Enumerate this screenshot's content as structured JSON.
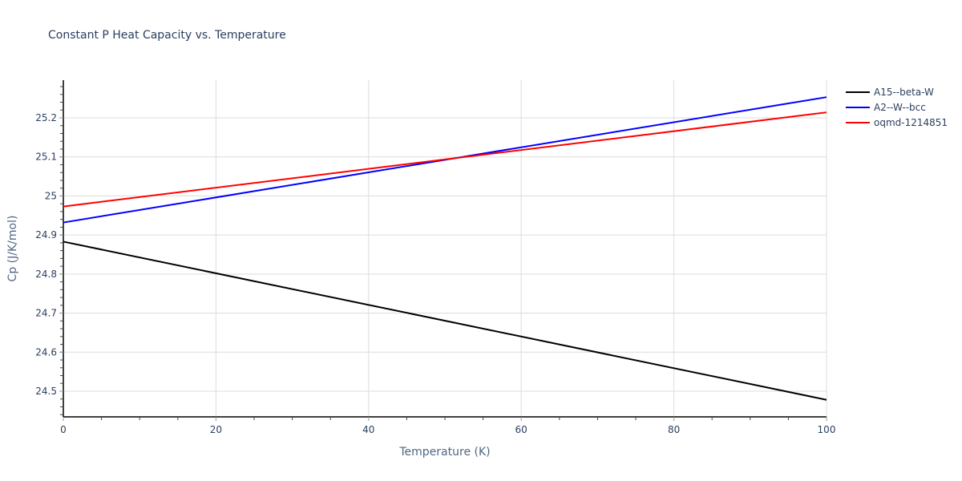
{
  "chart_data": {
    "type": "line",
    "title": "Constant P Heat Capacity vs. Temperature",
    "xlabel": "Temperature (K)",
    "ylabel": "Cp (J/K/mol)",
    "xlim": [
      0,
      100
    ],
    "ylim": [
      24.435,
      25.295
    ],
    "x_ticks": [
      "0",
      "20",
      "40",
      "60",
      "80",
      "100"
    ],
    "y_ticks": [
      "24.5",
      "24.6",
      "24.7",
      "24.8",
      "24.9",
      "25",
      "25.1",
      "25.2"
    ],
    "grid": true,
    "legend_position": "right-top",
    "x": [
      0,
      100
    ],
    "series": [
      {
        "name": "A15--beta-W",
        "color": "#000000",
        "values": [
          24.883,
          24.478
        ]
      },
      {
        "name": "A2--W--bcc",
        "color": "#0000ff",
        "values": [
          24.932,
          25.253
        ]
      },
      {
        "name": "oqmd-1214851",
        "color": "#ff0000",
        "values": [
          24.973,
          25.214
        ]
      }
    ]
  }
}
